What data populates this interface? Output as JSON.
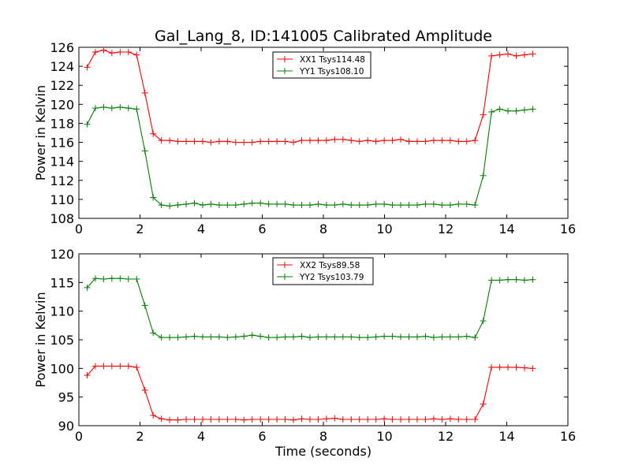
{
  "title": "Gal_Lang_8, ID:141005 Calibrated Amplitude",
  "colors": {
    "red": "#ff0000",
    "green": "#008000",
    "axes": "#000000",
    "background": "#ffffff"
  },
  "chart_data": [
    {
      "type": "line",
      "title": "Gal_Lang_8, ID:141005 Calibrated Amplitude",
      "xlabel": "",
      "ylabel": "Power in Kelvin",
      "xlim": [
        0,
        16
      ],
      "ylim": [
        108,
        126
      ],
      "xticks": [
        "0",
        "2",
        "4",
        "6",
        "8",
        "10",
        "12",
        "14",
        "16"
      ],
      "yticks": [
        "108",
        "110",
        "112",
        "114",
        "116",
        "118",
        "120",
        "122",
        "124",
        "126"
      ],
      "grid": false,
      "legend_position": "top-center",
      "x": [
        0.27,
        0.54,
        0.81,
        1.08,
        1.35,
        1.62,
        1.89,
        2.16,
        2.43,
        2.7,
        2.97,
        3.24,
        3.51,
        3.78,
        4.05,
        4.32,
        4.59,
        4.86,
        5.13,
        5.4,
        5.67,
        5.94,
        6.21,
        6.48,
        6.75,
        7.02,
        7.29,
        7.56,
        7.83,
        8.1,
        8.37,
        8.64,
        8.91,
        9.18,
        9.45,
        9.72,
        9.99,
        10.26,
        10.53,
        10.8,
        11.07,
        11.34,
        11.61,
        11.88,
        12.15,
        12.42,
        12.69,
        12.96,
        13.23,
        13.5,
        13.77,
        14.04,
        14.31,
        14.58,
        14.85
      ],
      "series": [
        {
          "name": "XX1 Tsys114.48",
          "color": "#ff0000",
          "values": [
            123.9,
            125.5,
            125.7,
            125.4,
            125.5,
            125.5,
            125.2,
            121.2,
            116.9,
            116.2,
            116.2,
            116.1,
            116.1,
            116.1,
            116.1,
            116.0,
            116.1,
            116.1,
            116.0,
            116.0,
            116.0,
            116.1,
            116.1,
            116.1,
            116.1,
            116.0,
            116.2,
            116.2,
            116.2,
            116.2,
            116.3,
            116.3,
            116.2,
            116.1,
            116.2,
            116.1,
            116.2,
            116.2,
            116.3,
            116.1,
            116.1,
            116.1,
            116.2,
            116.2,
            116.2,
            116.1,
            116.1,
            116.2,
            118.9,
            125.1,
            125.2,
            125.3,
            125.1,
            125.2,
            125.3
          ]
        },
        {
          "name": "YY1 Tsys108.10",
          "color": "#008000",
          "values": [
            117.9,
            119.6,
            119.7,
            119.6,
            119.7,
            119.6,
            119.5,
            115.1,
            110.2,
            109.4,
            109.3,
            109.4,
            109.5,
            109.6,
            109.4,
            109.5,
            109.4,
            109.4,
            109.4,
            109.5,
            109.6,
            109.6,
            109.5,
            109.5,
            109.5,
            109.4,
            109.4,
            109.4,
            109.5,
            109.4,
            109.4,
            109.5,
            109.4,
            109.4,
            109.4,
            109.5,
            109.5,
            109.4,
            109.4,
            109.4,
            109.4,
            109.5,
            109.5,
            109.4,
            109.4,
            109.5,
            109.5,
            109.4,
            112.5,
            119.2,
            119.5,
            119.3,
            119.3,
            119.4,
            119.5
          ]
        }
      ]
    },
    {
      "type": "line",
      "title": "",
      "xlabel": "Time (seconds)",
      "ylabel": "Power in Kelvin",
      "xlim": [
        0,
        16
      ],
      "ylim": [
        90,
        120
      ],
      "xticks": [
        "0",
        "2",
        "4",
        "6",
        "8",
        "10",
        "12",
        "14",
        "16"
      ],
      "yticks": [
        "90",
        "95",
        "100",
        "105",
        "110",
        "115",
        "120"
      ],
      "grid": false,
      "legend_position": "top-center",
      "x": [
        0.27,
        0.54,
        0.81,
        1.08,
        1.35,
        1.62,
        1.89,
        2.16,
        2.43,
        2.7,
        2.97,
        3.24,
        3.51,
        3.78,
        4.05,
        4.32,
        4.59,
        4.86,
        5.13,
        5.4,
        5.67,
        5.94,
        6.21,
        6.48,
        6.75,
        7.02,
        7.29,
        7.56,
        7.83,
        8.1,
        8.37,
        8.64,
        8.91,
        9.18,
        9.45,
        9.72,
        9.99,
        10.26,
        10.53,
        10.8,
        11.07,
        11.34,
        11.61,
        11.88,
        12.15,
        12.42,
        12.69,
        12.96,
        13.23,
        13.5,
        13.77,
        14.04,
        14.31,
        14.58,
        14.85
      ],
      "series": [
        {
          "name": "XX2 Tsys89.58",
          "color": "#ff0000",
          "values": [
            98.8,
            100.4,
            100.4,
            100.4,
            100.4,
            100.4,
            100.2,
            96.2,
            91.8,
            91.2,
            91.0,
            91.0,
            91.1,
            91.1,
            91.1,
            91.1,
            91.1,
            91.1,
            91.1,
            91.0,
            91.1,
            91.1,
            91.1,
            91.1,
            91.1,
            91.0,
            91.2,
            91.1,
            91.1,
            91.2,
            91.3,
            91.1,
            91.1,
            91.1,
            91.1,
            91.1,
            91.2,
            91.1,
            91.1,
            91.1,
            91.1,
            91.1,
            91.2,
            91.1,
            91.2,
            91.1,
            91.1,
            91.1,
            93.8,
            100.2,
            100.2,
            100.2,
            100.2,
            100.1,
            100.0
          ]
        },
        {
          "name": "YY2 Tsys103.79",
          "color": "#008000",
          "values": [
            114.1,
            115.7,
            115.6,
            115.7,
            115.7,
            115.6,
            115.6,
            111.0,
            106.2,
            105.4,
            105.4,
            105.4,
            105.5,
            105.6,
            105.5,
            105.5,
            105.5,
            105.4,
            105.5,
            105.6,
            105.8,
            105.6,
            105.4,
            105.4,
            105.5,
            105.5,
            105.6,
            105.4,
            105.5,
            105.5,
            105.5,
            105.5,
            105.5,
            105.4,
            105.4,
            105.5,
            105.6,
            105.6,
            105.5,
            105.5,
            105.5,
            105.6,
            105.4,
            105.5,
            105.5,
            105.5,
            105.6,
            105.4,
            108.3,
            115.4,
            115.4,
            115.5,
            115.5,
            115.4,
            115.5
          ]
        }
      ]
    }
  ]
}
